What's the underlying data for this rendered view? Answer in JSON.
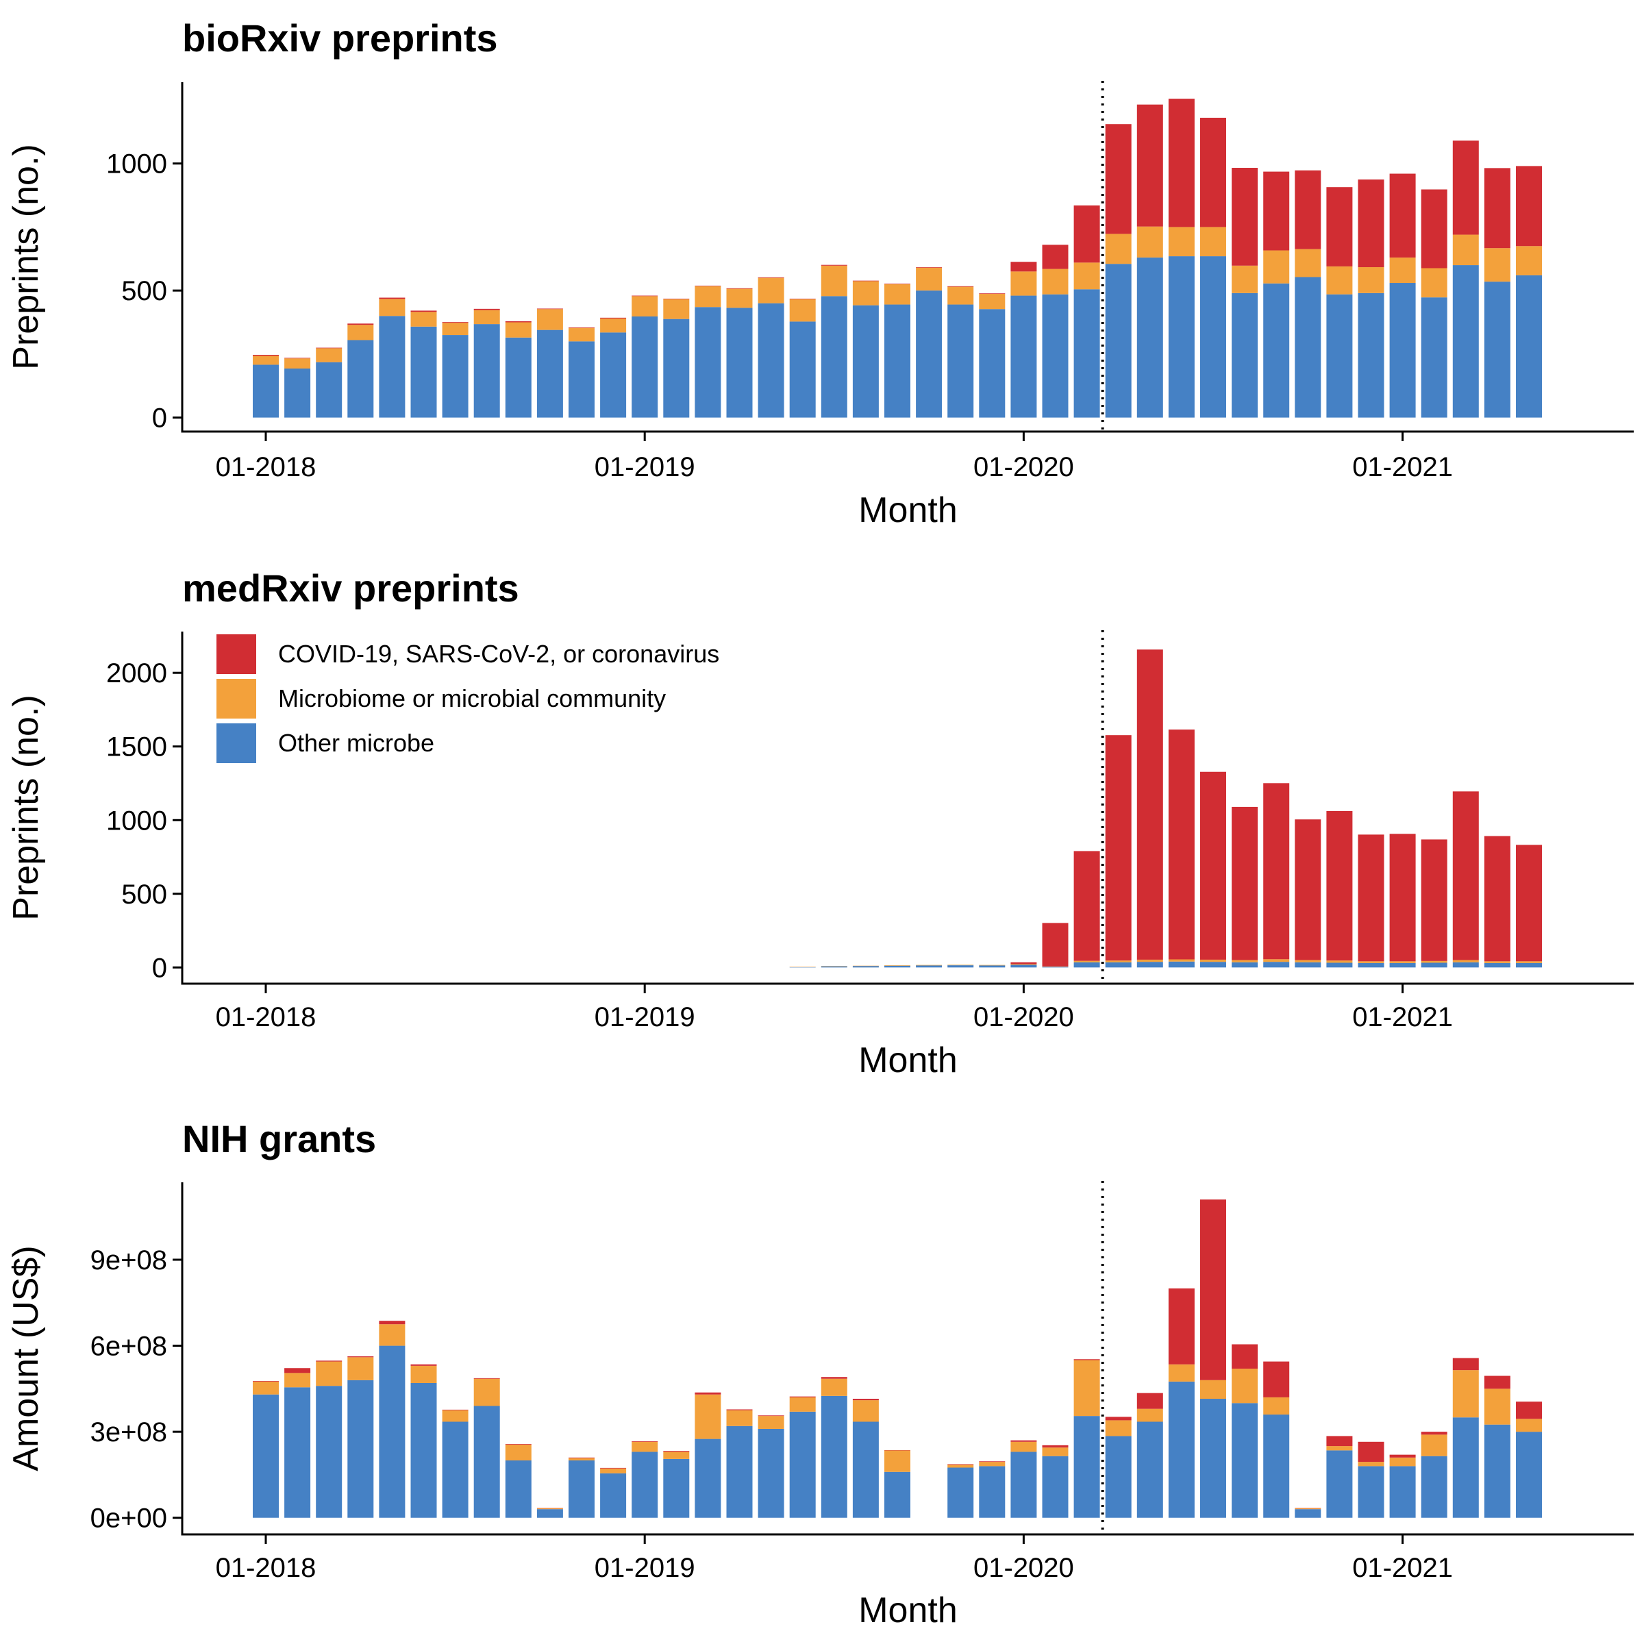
{
  "colors": {
    "covid": "#d12d33",
    "microbiome": "#f3a13b",
    "other": "#4581c5"
  },
  "legend": {
    "items": [
      {
        "key": "covid",
        "label": "COVID-19, SARS-CoV-2, or coronavirus"
      },
      {
        "key": "microbiome",
        "label": "Microbiome or microbial community"
      },
      {
        "key": "other",
        "label": "Other microbe"
      }
    ]
  },
  "chart_data": [
    {
      "type": "bar",
      "stacked": true,
      "title": "bioRxiv preprints",
      "xlabel": "Month",
      "ylabel": "Preprints (no.)",
      "x_ticks": [
        "01-2018",
        "01-2019",
        "01-2020",
        "01-2021"
      ],
      "y_ticks": [
        "0",
        "500",
        "1000"
      ],
      "y_tick_values": [
        0,
        500,
        1000
      ],
      "ylim": [
        -55,
        1320
      ],
      "reference_line": "2020-03",
      "categories": [
        "2018-01",
        "2018-02",
        "2018-03",
        "2018-04",
        "2018-05",
        "2018-06",
        "2018-07",
        "2018-08",
        "2018-09",
        "2018-10",
        "2018-11",
        "2018-12",
        "2019-01",
        "2019-02",
        "2019-03",
        "2019-04",
        "2019-05",
        "2019-06",
        "2019-07",
        "2019-08",
        "2019-09",
        "2019-10",
        "2019-11",
        "2019-12",
        "2020-01",
        "2020-02",
        "2020-03",
        "2020-04",
        "2020-05",
        "2020-06",
        "2020-07",
        "2020-08",
        "2020-09",
        "2020-10",
        "2020-11",
        "2020-12",
        "2021-01",
        "2021-02",
        "2021-03",
        "2021-04",
        "2021-05"
      ],
      "series": [
        {
          "key": "other",
          "name": "Other microbe",
          "values": [
            208,
            193,
            218,
            305,
            400,
            358,
            325,
            368,
            315,
            345,
            300,
            335,
            398,
            388,
            435,
            432,
            450,
            378,
            478,
            442,
            445,
            500,
            445,
            427,
            480,
            485,
            505,
            605,
            630,
            635,
            635,
            490,
            528,
            553,
            485,
            490,
            530,
            473,
            600,
            535,
            560
          ]
        },
        {
          "key": "microbiome",
          "name": "Microbiome or microbial community",
          "values": [
            35,
            40,
            55,
            60,
            67,
            58,
            48,
            55,
            60,
            82,
            53,
            55,
            80,
            78,
            82,
            75,
            100,
            88,
            120,
            95,
            80,
            90,
            70,
            60,
            95,
            100,
            105,
            118,
            122,
            115,
            115,
            108,
            130,
            110,
            110,
            102,
            100,
            115,
            120,
            132,
            115
          ]
        },
        {
          "key": "covid",
          "name": "COVID-19, SARS-CoV-2, or coronavirus",
          "values": [
            4,
            2,
            2,
            5,
            5,
            5,
            3,
            5,
            4,
            2,
            2,
            3,
            2,
            2,
            2,
            2,
            2,
            2,
            3,
            2,
            2,
            2,
            2,
            2,
            38,
            95,
            225,
            432,
            480,
            505,
            430,
            385,
            310,
            310,
            312,
            345,
            330,
            310,
            370,
            315,
            315
          ]
        }
      ]
    },
    {
      "type": "bar",
      "stacked": true,
      "title": "medRxiv preprints",
      "xlabel": "Month",
      "ylabel": "Preprints (no.)",
      "x_ticks": [
        "01-2018",
        "01-2019",
        "01-2020",
        "01-2021"
      ],
      "y_ticks": [
        "0",
        "500",
        "1000",
        "1500",
        "2000"
      ],
      "y_tick_values": [
        0,
        500,
        1000,
        1500,
        2000
      ],
      "ylim": [
        -110,
        2280
      ],
      "reference_line": "2020-03",
      "categories": [
        "2019-06",
        "2019-07",
        "2019-08",
        "2019-09",
        "2019-10",
        "2019-11",
        "2019-12",
        "2020-01",
        "2020-02",
        "2020-03",
        "2020-04",
        "2020-05",
        "2020-06",
        "2020-07",
        "2020-08",
        "2020-09",
        "2020-10",
        "2020-11",
        "2020-12",
        "2021-01",
        "2021-02",
        "2021-03",
        "2021-04",
        "2021-05"
      ],
      "series": [
        {
          "key": "other",
          "name": "Other microbe",
          "values": [
            3,
            8,
            10,
            12,
            14,
            15,
            14,
            18,
            5,
            35,
            35,
            38,
            40,
            38,
            35,
            38,
            35,
            32,
            30,
            30,
            32,
            35,
            30,
            30
          ]
        },
        {
          "key": "microbiome",
          "name": "Microbiome or microbial community",
          "values": [
            1,
            2,
            2,
            3,
            3,
            3,
            3,
            5,
            2,
            10,
            12,
            15,
            15,
            15,
            15,
            18,
            15,
            15,
            12,
            12,
            12,
            15,
            12,
            12
          ]
        },
        {
          "key": "covid",
          "name": "COVID-19, SARS-CoV-2, or coronavirus",
          "values": [
            0,
            0,
            0,
            0,
            0,
            0,
            0,
            12,
            295,
            745,
            1530,
            2105,
            1560,
            1275,
            1040,
            1195,
            955,
            1015,
            860,
            865,
            825,
            1145,
            850,
            790
          ]
        }
      ]
    },
    {
      "type": "bar",
      "stacked": true,
      "title": "NIH grants",
      "xlabel": "Month",
      "ylabel": "Amount (US$)",
      "x_ticks": [
        "01-2018",
        "01-2019",
        "01-2020",
        "01-2021"
      ],
      "y_ticks": [
        "0e+00",
        "3e+08",
        "6e+08",
        "9e+08"
      ],
      "y_tick_values": [
        0,
        300000000,
        600000000,
        900000000
      ],
      "ylim": [
        -58000000,
        1170000000
      ],
      "reference_line": "2020-03",
      "categories": [
        "2018-01",
        "2018-02",
        "2018-03",
        "2018-04",
        "2018-05",
        "2018-06",
        "2018-07",
        "2018-08",
        "2018-09",
        "2018-10",
        "2018-11",
        "2018-12",
        "2019-01",
        "2019-02",
        "2019-03",
        "2019-04",
        "2019-05",
        "2019-06",
        "2019-07",
        "2019-08",
        "2019-09",
        "2019-10",
        "2019-11",
        "2019-12",
        "2020-01",
        "2020-02",
        "2020-03",
        "2020-04",
        "2020-05",
        "2020-06",
        "2020-07",
        "2020-08",
        "2020-09",
        "2020-10",
        "2020-11",
        "2020-12",
        "2021-01",
        "2021-02",
        "2021-03",
        "2021-04",
        "2021-05"
      ],
      "series": [
        {
          "key": "other",
          "name": "Other microbe",
          "values": [
            430000000,
            455000000,
            460000000,
            480000000,
            600000000,
            470000000,
            335000000,
            390000000,
            200000000,
            30000000,
            200000000,
            155000000,
            230000000,
            205000000,
            275000000,
            320000000,
            310000000,
            370000000,
            425000000,
            335000000,
            160000000,
            0,
            175000000,
            180000000,
            230000000,
            215000000,
            355000000,
            285000000,
            335000000,
            475000000,
            415000000,
            400000000,
            360000000,
            30000000,
            235000000,
            180000000,
            180000000,
            215000000,
            350000000,
            325000000,
            300000000
          ]
        },
        {
          "key": "microbiome",
          "name": "Microbiome or microbial community",
          "values": [
            45000000,
            50000000,
            85000000,
            80000000,
            75000000,
            60000000,
            40000000,
            95000000,
            55000000,
            3000000,
            8000000,
            17000000,
            35000000,
            25000000,
            155000000,
            55000000,
            45000000,
            50000000,
            60000000,
            75000000,
            75000000,
            0,
            10000000,
            15000000,
            35000000,
            30000000,
            195000000,
            55000000,
            45000000,
            60000000,
            65000000,
            120000000,
            60000000,
            3000000,
            15000000,
            15000000,
            30000000,
            75000000,
            165000000,
            125000000,
            45000000
          ]
        },
        {
          "key": "covid",
          "name": "COVID-19, SARS-CoV-2, or coronavirus",
          "values": [
            2000000,
            17000000,
            3000000,
            3000000,
            12000000,
            5000000,
            2000000,
            2000000,
            2000000,
            1000000,
            2000000,
            2000000,
            2000000,
            3000000,
            7000000,
            3000000,
            2000000,
            3000000,
            6000000,
            5000000,
            1000000,
            0,
            2000000,
            2000000,
            5000000,
            8000000,
            3000000,
            12000000,
            55000000,
            265000000,
            630000000,
            85000000,
            125000000,
            1000000,
            35000000,
            70000000,
            10000000,
            10000000,
            42000000,
            45000000,
            60000000
          ]
        }
      ]
    }
  ]
}
